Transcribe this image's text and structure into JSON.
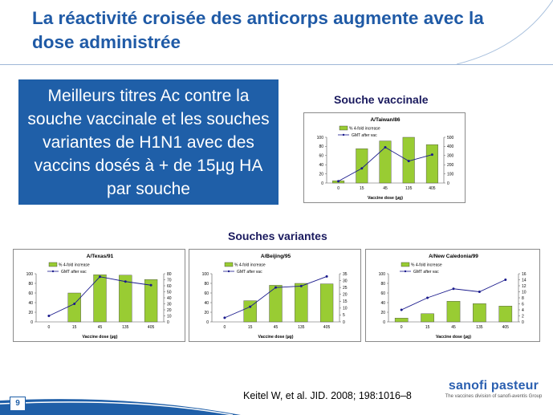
{
  "slide": {
    "title": "La réactivité croisée des anticorps augmente avec la dose administrée",
    "box_text": "Meilleurs titres Ac contre la souche vaccinale et les souches variantes de H1N1 avec des vaccins dosés à + de 15µg HA par souche",
    "heading_vaccine": "Souche vaccinale",
    "heading_variants": "Souches variantes",
    "citation": "Keitel W, et al. JID. 2008; 198:1016–8",
    "logo_name": "sanofi pasteur",
    "logo_sub": "The vaccines division of sanofi-aventis Group",
    "page_number": "9",
    "colors": {
      "bar": "#99cc33",
      "line": "#1a1a8c",
      "title": "#1f5aa6",
      "box": "#1f5fa8"
    }
  },
  "chart_data": [
    {
      "type": "bar",
      "title": "A/Taiwan/86",
      "categories": [
        "0",
        "15",
        "45",
        "135",
        "405"
      ],
      "xlabel": "Vaccine dose (µg)",
      "series": [
        {
          "name": "% 4-fold increase",
          "type": "bar",
          "axis": "left",
          "values": [
            5,
            75,
            92,
            100,
            84
          ]
        },
        {
          "name": "GMT after vac",
          "type": "line",
          "axis": "right",
          "values": [
            20,
            160,
            390,
            240,
            310
          ]
        }
      ],
      "ylim_left": [
        0,
        100
      ],
      "yticks_left": [
        "0",
        "20",
        "40",
        "60",
        "80",
        "100"
      ],
      "ylim_right": [
        0,
        500
      ],
      "yticks_right": [
        "0",
        "100",
        "200",
        "300",
        "400",
        "500"
      ]
    },
    {
      "type": "bar",
      "title": "A/Texas/91",
      "categories": [
        "0",
        "15",
        "45",
        "135",
        "405"
      ],
      "xlabel": "Vaccine dose (µg)",
      "series": [
        {
          "name": "% 4-fold increase",
          "type": "bar",
          "axis": "left",
          "values": [
            0,
            60,
            98,
            97,
            88
          ]
        },
        {
          "name": "GMT after vac",
          "type": "line",
          "axis": "right",
          "values": [
            10,
            30,
            75,
            67,
            61
          ]
        }
      ],
      "ylim_left": [
        0,
        100
      ],
      "yticks_left": [
        "0",
        "20",
        "40",
        "60",
        "80",
        "100"
      ],
      "ylim_right": [
        0,
        80
      ],
      "yticks_right": [
        "0",
        "10",
        "20",
        "30",
        "40",
        "50",
        "60",
        "70",
        "80"
      ]
    },
    {
      "type": "bar",
      "title": "A/Beijing/95",
      "categories": [
        "0",
        "15",
        "45",
        "135",
        "405"
      ],
      "xlabel": "Vaccine dose (µg)",
      "series": [
        {
          "name": "% 4-fold increase",
          "type": "bar",
          "axis": "left",
          "values": [
            0,
            44,
            76,
            80,
            79
          ]
        },
        {
          "name": "GMT after vac",
          "type": "line",
          "axis": "right",
          "values": [
            3,
            11,
            25,
            26,
            33
          ]
        }
      ],
      "ylim_left": [
        0,
        100
      ],
      "yticks_left": [
        "0",
        "20",
        "40",
        "60",
        "80",
        "100"
      ],
      "ylim_right": [
        0,
        35
      ],
      "yticks_right": [
        "0",
        "5",
        "10",
        "15",
        "20",
        "25",
        "30",
        "35"
      ]
    },
    {
      "type": "bar",
      "title": "A/New Caledonia/99",
      "categories": [
        "0",
        "15",
        "45",
        "135",
        "405"
      ],
      "xlabel": "Vaccine dose (µg)",
      "series": [
        {
          "name": "% 4-fold increase",
          "type": "bar",
          "axis": "left",
          "values": [
            8,
            17,
            43,
            38,
            33
          ]
        },
        {
          "name": "GMT after vac",
          "type": "line",
          "axis": "right",
          "values": [
            4,
            8,
            11,
            10,
            14
          ]
        }
      ],
      "ylim_left": [
        0,
        100
      ],
      "yticks_left": [
        "0",
        "20",
        "40",
        "60",
        "80",
        "100"
      ],
      "ylim_right": [
        0,
        16
      ],
      "yticks_right": [
        "0",
        "2",
        "4",
        "6",
        "8",
        "10",
        "12",
        "14",
        "16"
      ]
    }
  ]
}
